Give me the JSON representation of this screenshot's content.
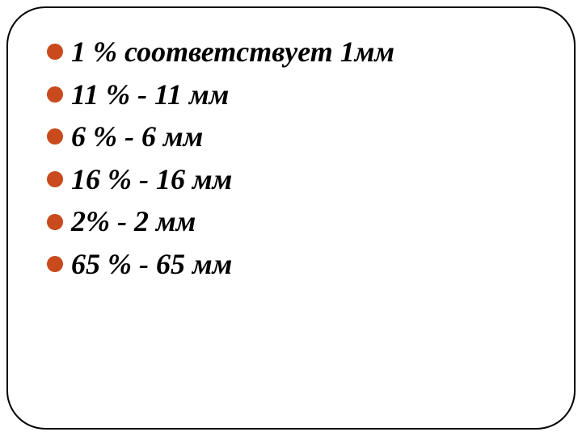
{
  "slide": {
    "border_color": "#000000",
    "border_radius": 48,
    "bullet_color": "#c94a1c",
    "text_color": "#000000",
    "background_color": "#ffffff",
    "font_size": 36,
    "font_style": "italic",
    "font_weight": "bold",
    "items": [
      "1 % соответствует 1мм",
      "11 % - 11 мм",
      "6 % - 6 мм",
      "16 % - 16 мм",
      "2% - 2 мм",
      "65 % - 65 мм"
    ]
  }
}
